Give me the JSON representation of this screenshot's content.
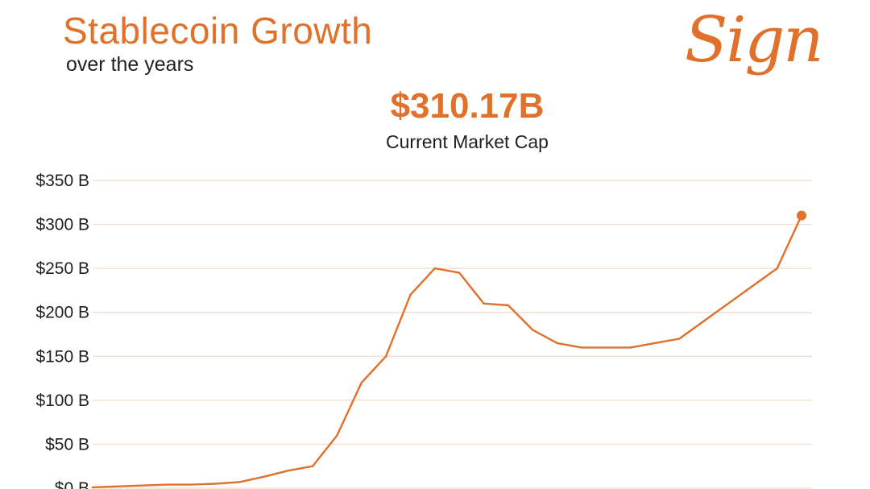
{
  "header": {
    "title": "Stablecoin Growth",
    "subtitle": "over the years",
    "logo_text": "Sign"
  },
  "stat": {
    "value": "$310.17B",
    "label": "Current Market Cap"
  },
  "colors": {
    "accent": "#e0702a",
    "grid": "#f3dcc9",
    "text": "#1f1f1f"
  },
  "chart_data": {
    "type": "line",
    "title": "",
    "xlabel": "",
    "ylabel": "",
    "ylim": [
      0,
      350
    ],
    "yticks": [
      {
        "value": 0,
        "label": "$0 B"
      },
      {
        "value": 50,
        "label": "$50 B"
      },
      {
        "value": 100,
        "label": "$100 B"
      },
      {
        "value": 150,
        "label": "$150 B"
      },
      {
        "value": 200,
        "label": "$200 B"
      },
      {
        "value": 250,
        "label": "$250 B"
      },
      {
        "value": 300,
        "label": "$300 B"
      },
      {
        "value": 350,
        "label": "$350 B"
      }
    ],
    "grid": true,
    "series": [
      {
        "values": [
          1,
          2,
          3,
          4,
          4,
          5,
          7,
          13,
          20,
          25,
          60,
          120,
          150,
          220,
          250,
          245,
          210,
          208,
          180,
          165,
          160,
          160,
          160,
          165,
          170,
          190,
          210,
          230,
          250,
          310.17
        ]
      }
    ],
    "highlight": "last"
  }
}
